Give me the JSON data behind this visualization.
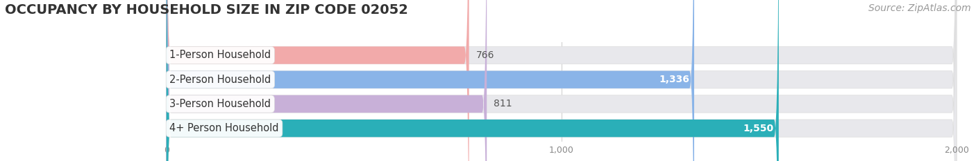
{
  "title": "OCCUPANCY BY HOUSEHOLD SIZE IN ZIP CODE 02052",
  "source": "Source: ZipAtlas.com",
  "categories": [
    "1-Person Household",
    "2-Person Household",
    "3-Person Household",
    "4+ Person Household"
  ],
  "values": [
    766,
    1336,
    811,
    1550
  ],
  "bar_colors": [
    "#f2aaaa",
    "#8ab4e8",
    "#c8b0d8",
    "#2aafb8"
  ],
  "label_colors": [
    "#444444",
    "#ffffff",
    "#444444",
    "#ffffff"
  ],
  "bg_color": "#ffffff",
  "bar_bg_color": "#e8e8ec",
  "xlim": [
    -100,
    2000
  ],
  "data_xlim": [
    0,
    2000
  ],
  "xticks": [
    0,
    1000,
    2000
  ],
  "title_fontsize": 14,
  "source_fontsize": 10,
  "label_fontsize": 10.5,
  "value_fontsize": 10
}
